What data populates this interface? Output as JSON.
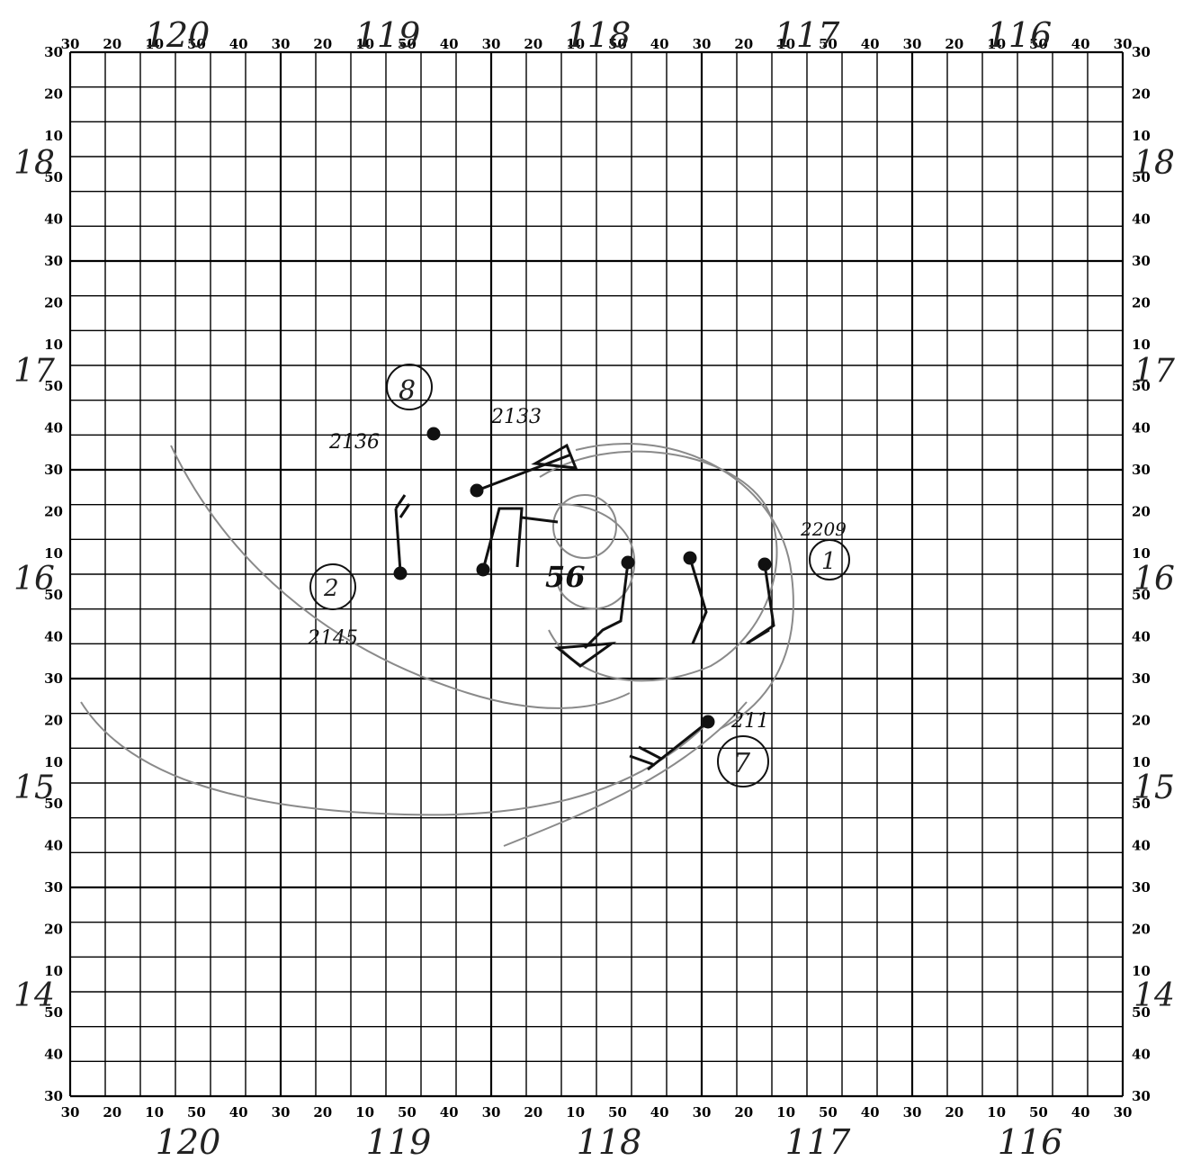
{
  "plot_sheet": {
    "top_minute_labels": [
      "30",
      "20",
      "10",
      "50",
      "40",
      "30",
      "20",
      "10",
      "50",
      "40",
      "30",
      "20",
      "10",
      "50",
      "40",
      "30",
      "20",
      "10",
      "50",
      "40",
      "30",
      "20",
      "10",
      "50",
      "40",
      "30"
    ],
    "bottom_minute_labels": [
      "30",
      "20",
      "10",
      "50",
      "40",
      "30",
      "20",
      "10",
      "50",
      "40",
      "30",
      "20",
      "10",
      "50",
      "40",
      "30",
      "20",
      "10",
      "50",
      "40",
      "30",
      "20",
      "10",
      "50",
      "40",
      "30"
    ],
    "left_minute_labels": [
      "30",
      "20",
      "10",
      "50",
      "40",
      "30",
      "20",
      "10",
      "50",
      "40",
      "30",
      "20",
      "10",
      "50",
      "40",
      "30",
      "20",
      "10",
      "50",
      "40",
      "30",
      "20",
      "10",
      "50",
      "40",
      "30"
    ],
    "right_minute_labels": [
      "30",
      "20",
      "10",
      "50",
      "40",
      "30",
      "20",
      "10",
      "50",
      "40",
      "30",
      "20",
      "10",
      "50",
      "40",
      "30",
      "20",
      "10",
      "50",
      "40",
      "30",
      "20",
      "10",
      "50",
      "40",
      "30"
    ],
    "longitude_degrees_top": [
      "120",
      "119",
      "118",
      "117",
      "116"
    ],
    "longitude_degrees_bottom": [
      "120",
      "119",
      "118",
      "117",
      "116"
    ],
    "latitude_degrees_left": [
      "18",
      "17",
      "16",
      "15",
      "14"
    ],
    "latitude_degrees_right": [
      "18",
      "17",
      "16",
      "15",
      "14"
    ]
  },
  "annotations": {
    "station_8": "8",
    "station_2": "2",
    "station_1": "1",
    "station_7": "7",
    "time_2136": "2136",
    "time_2133": "2133",
    "time_2145": "2145",
    "time_2209": "2209",
    "time_211": "211",
    "center_label": "56"
  },
  "colors": {
    "grid": "#000000",
    "pencil": "#8a8a8a",
    "ink": "#111111"
  }
}
